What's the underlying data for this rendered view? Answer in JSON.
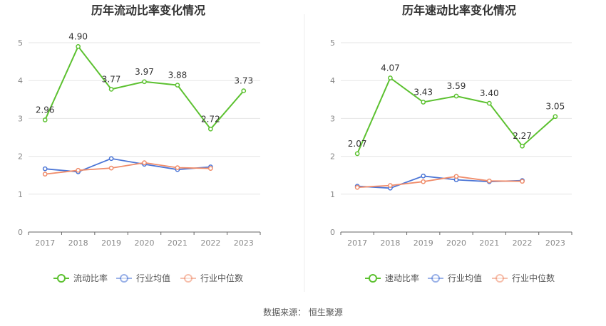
{
  "chart_data": [
    {
      "type": "line",
      "title": "历年流动比率变化情况",
      "categories": [
        "2017",
        "2018",
        "2019",
        "2020",
        "2021",
        "2022",
        "2023"
      ],
      "ylim": [
        0,
        5
      ],
      "yticks": [
        "0",
        "1",
        "2",
        "3",
        "4",
        "5"
      ],
      "grid": true,
      "legend_position": "bottom",
      "series": [
        {
          "name": "流动比率",
          "color": "#5cc130",
          "values": [
            2.96,
            4.9,
            3.77,
            3.97,
            3.88,
            2.72,
            3.73
          ],
          "labels": [
            "2.96",
            "4.90",
            "3.77",
            "3.97",
            "3.88",
            "2.72",
            "3.73"
          ]
        },
        {
          "name": "行业均值",
          "color": "#4b75d6",
          "values": [
            1.67,
            1.59,
            1.94,
            1.79,
            1.65,
            1.72,
            null
          ]
        },
        {
          "name": "行业中位数",
          "color": "#f08c6a",
          "values": [
            1.53,
            1.63,
            1.69,
            1.83,
            1.7,
            1.68,
            null
          ]
        }
      ]
    },
    {
      "type": "line",
      "title": "历年速动比率变化情况",
      "categories": [
        "2017",
        "2018",
        "2019",
        "2020",
        "2021",
        "2022",
        "2023"
      ],
      "ylim": [
        0,
        5
      ],
      "yticks": [
        "0",
        "1",
        "2",
        "3",
        "4",
        "5"
      ],
      "grid": true,
      "legend_position": "bottom",
      "series": [
        {
          "name": "速动比率",
          "color": "#5cc130",
          "values": [
            2.07,
            4.07,
            3.43,
            3.59,
            3.4,
            2.27,
            3.05
          ],
          "labels": [
            "2.07",
            "4.07",
            "3.43",
            "3.59",
            "3.40",
            "2.27",
            "3.05"
          ]
        },
        {
          "name": "行业均值",
          "color": "#4b75d6",
          "values": [
            1.21,
            1.16,
            1.48,
            1.38,
            1.33,
            1.36,
            null
          ]
        },
        {
          "name": "行业中位数",
          "color": "#f08c6a",
          "values": [
            1.18,
            1.23,
            1.33,
            1.47,
            1.35,
            1.34,
            null
          ]
        }
      ]
    }
  ],
  "footer": {
    "source": "数据来源：  恒生聚源"
  }
}
